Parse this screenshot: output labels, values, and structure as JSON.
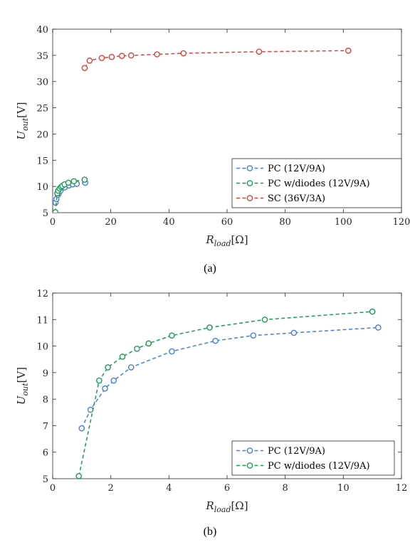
{
  "chart_data": [
    {
      "type": "line",
      "caption": "(a)",
      "xlabel": "R_load[Ω]",
      "ylabel": "U_out[V]",
      "xlim": [
        0,
        120
      ],
      "ylim": [
        5,
        40
      ],
      "xticks": [
        "0",
        "20",
        "40",
        "60",
        "80",
        "100",
        "120"
      ],
      "yticks": [
        "5",
        "10",
        "15",
        "20",
        "25",
        "30",
        "35",
        "40"
      ],
      "grid": false,
      "legend_position": "bottom-right",
      "series": [
        {
          "name": "PC (12V/9A)",
          "color": "#4a7fd4",
          "x": [
            1.0,
            1.3,
            1.8,
            2.1,
            2.7,
            4.1,
            5.6,
            6.9,
            8.3,
            11.2
          ],
          "y": [
            6.9,
            7.6,
            8.4,
            8.7,
            9.2,
            9.8,
            10.2,
            10.4,
            10.5,
            10.7
          ]
        },
        {
          "name": "PC w/diodes (12V/9A)",
          "color": "#1e9a55",
          "x": [
            0.9,
            1.6,
            1.9,
            2.4,
            2.9,
            3.3,
            4.1,
            5.4,
            7.3,
            11.0
          ],
          "y": [
            5.1,
            8.7,
            9.2,
            9.6,
            9.9,
            10.1,
            10.4,
            10.7,
            11.0,
            11.3
          ]
        },
        {
          "name": "SC (36V/3A)",
          "color": "#d9443c",
          "x": [
            11.0,
            12.7,
            16.9,
            20.3,
            23.8,
            27.0,
            35.9,
            45.0,
            71.0,
            101.7
          ],
          "y": [
            32.6,
            34.0,
            34.5,
            34.7,
            34.9,
            35.0,
            35.2,
            35.4,
            35.7,
            35.9
          ]
        }
      ]
    },
    {
      "type": "line",
      "caption": "(b)",
      "xlabel": "R_load[Ω]",
      "ylabel": "U_out[V]",
      "xlim": [
        0,
        12
      ],
      "ylim": [
        5,
        12
      ],
      "xticks": [
        "0",
        "2",
        "4",
        "6",
        "8",
        "10",
        "12"
      ],
      "yticks": [
        "5",
        "6",
        "7",
        "8",
        "9",
        "10",
        "11",
        "12"
      ],
      "grid": false,
      "legend_position": "bottom-right",
      "series": [
        {
          "name": "PC (12V/9A)",
          "color": "#4a7fd4",
          "x": [
            1.0,
            1.3,
            1.8,
            2.1,
            2.7,
            4.1,
            5.6,
            6.9,
            8.3,
            11.2
          ],
          "y": [
            6.9,
            7.6,
            8.4,
            8.7,
            9.2,
            9.8,
            10.2,
            10.4,
            10.5,
            10.7
          ]
        },
        {
          "name": "PC w/diodes (12V/9A)",
          "color": "#1e9a55",
          "x": [
            0.9,
            1.6,
            1.9,
            2.4,
            2.9,
            3.3,
            4.1,
            5.4,
            7.3,
            11.0
          ],
          "y": [
            5.1,
            8.7,
            9.2,
            9.6,
            9.9,
            10.1,
            10.4,
            10.7,
            11.0,
            11.3
          ]
        }
      ]
    }
  ]
}
